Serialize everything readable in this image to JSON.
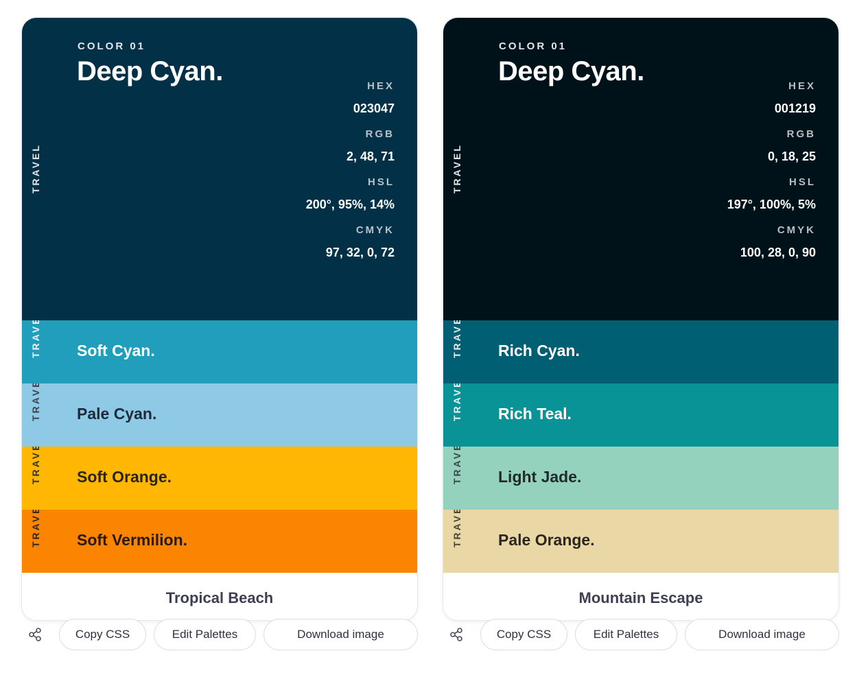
{
  "palettes": [
    {
      "title": "Tropical Beach",
      "main": {
        "label": "COLOR 01",
        "name": "Deep Cyan.",
        "tag": "TRAVEL",
        "bg": "#023047",
        "text_color": "#ffffff",
        "label_color": "#e1e6ea",
        "spec_key_color": "#b7c2c9",
        "specs": [
          {
            "key": "HEX",
            "value": "023047"
          },
          {
            "key": "RGB",
            "value": "2, 48, 71"
          },
          {
            "key": "HSL",
            "value": "200°, 95%, 14%"
          },
          {
            "key": "CMYK",
            "value": "97, 32, 0, 72"
          }
        ]
      },
      "stripes": [
        {
          "name": "Soft Cyan.",
          "tag": "TRAVEL",
          "bg": "#219ebc",
          "text_color": "#ffffff",
          "tag_color": "#e8f4f8"
        },
        {
          "name": "Pale Cyan.",
          "tag": "TRAVEL",
          "bg": "#8ecae6",
          "text_color": "#1e2a38",
          "tag_color": "#3a4653"
        },
        {
          "name": "Soft Orange.",
          "tag": "TRAVEL",
          "bg": "#ffb703",
          "text_color": "#2a2418",
          "tag_color": "#3d3420"
        },
        {
          "name": "Soft Vermilion.",
          "tag": "TRAVEL",
          "bg": "#fb8500",
          "text_color": "#2a1a0e",
          "tag_color": "#3a2614"
        }
      ],
      "actions": {
        "copy_css": "Copy CSS",
        "edit": "Edit Palettes",
        "download": "Download image"
      }
    },
    {
      "title": "Mountain Escape",
      "main": {
        "label": "COLOR 01",
        "name": "Deep Cyan.",
        "tag": "TRAVEL",
        "bg": "#001219",
        "text_color": "#ffffff",
        "label_color": "#e1e6ea",
        "spec_key_color": "#b7bfc3",
        "specs": [
          {
            "key": "HEX",
            "value": "001219"
          },
          {
            "key": "RGB",
            "value": "0, 18, 25"
          },
          {
            "key": "HSL",
            "value": "197°, 100%, 5%"
          },
          {
            "key": "CMYK",
            "value": "100, 28, 0, 90"
          }
        ]
      },
      "stripes": [
        {
          "name": "Rich Cyan.",
          "tag": "TRAVEL",
          "bg": "#005f73",
          "text_color": "#ffffff",
          "tag_color": "#e6eef0"
        },
        {
          "name": "Rich Teal.",
          "tag": "TRAVEL",
          "bg": "#0a9396",
          "text_color": "#ffffff",
          "tag_color": "#e6f3f3"
        },
        {
          "name": "Light Jade.",
          "tag": "TRAVEL",
          "bg": "#94d2bd",
          "text_color": "#1e2a2a",
          "tag_color": "#3a4848"
        },
        {
          "name": "Pale Orange.",
          "tag": "TRAVEL",
          "bg": "#e9d8a6",
          "text_color": "#2a2620",
          "tag_color": "#4a4436"
        }
      ],
      "actions": {
        "copy_css": "Copy CSS",
        "edit": "Edit Palettes",
        "download": "Download image"
      }
    }
  ],
  "icons": {
    "share": "share-icon"
  }
}
